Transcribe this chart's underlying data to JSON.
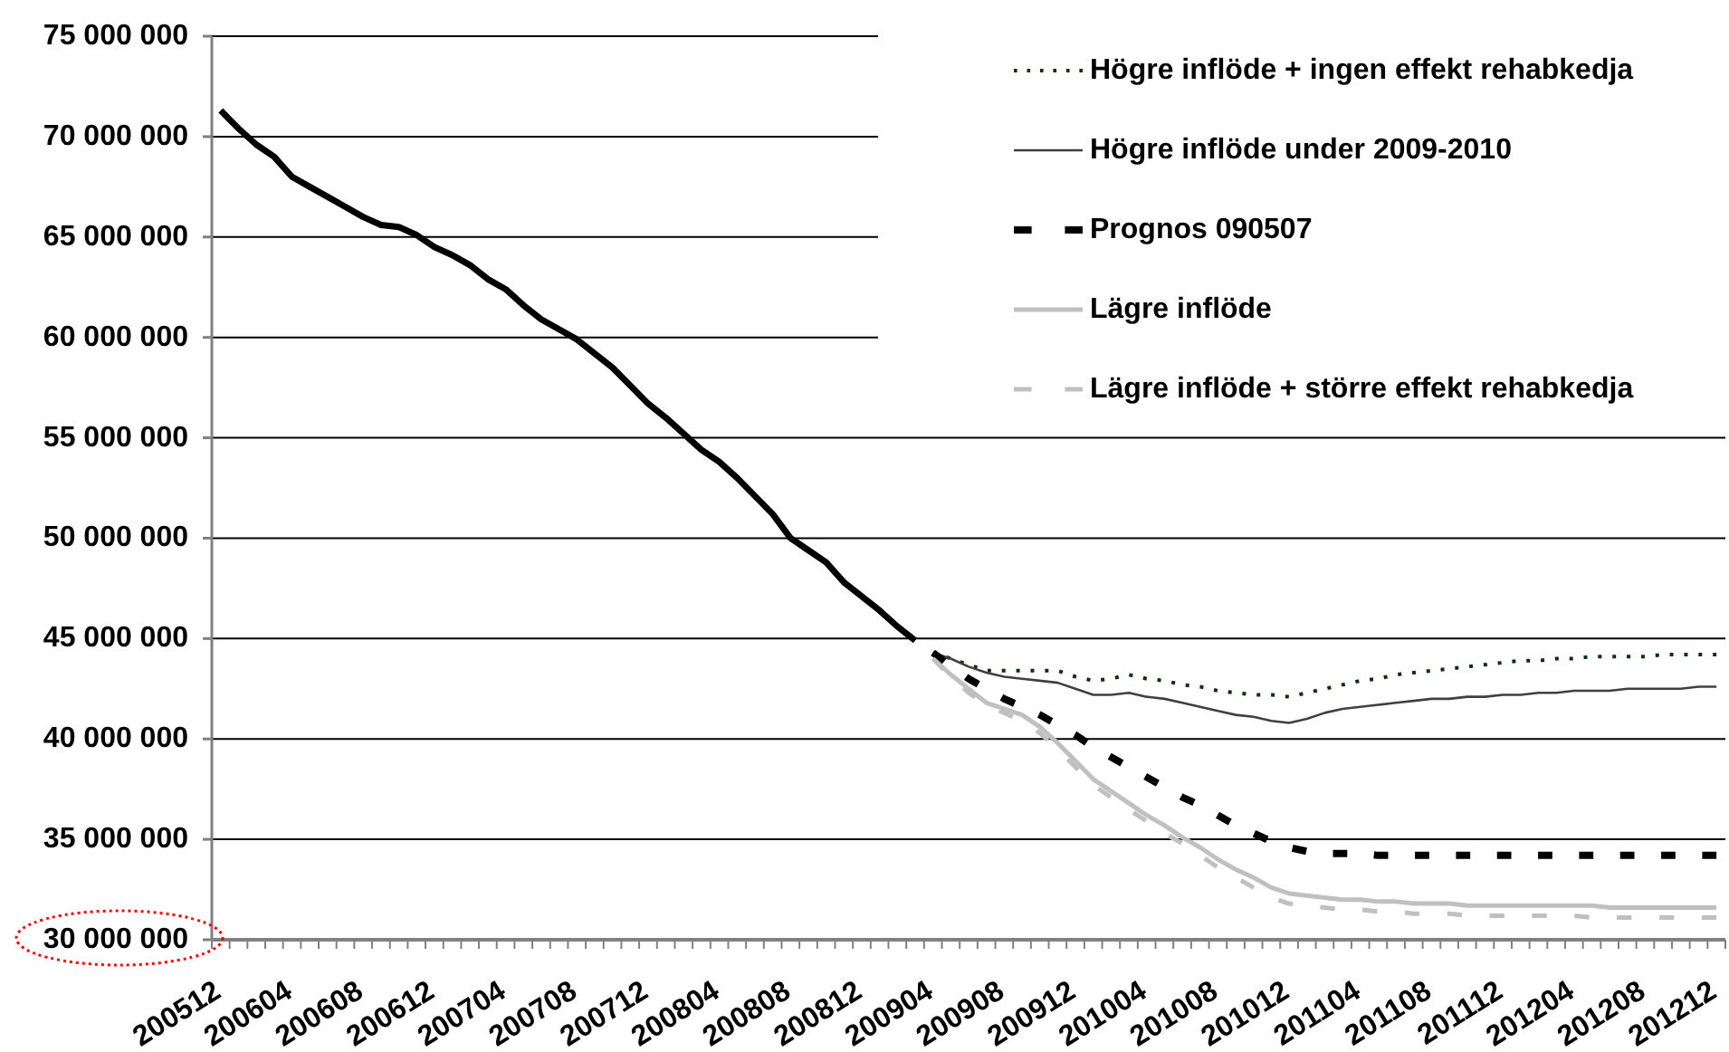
{
  "chart_data": {
    "type": "line",
    "categories": [
      "200512",
      null,
      null,
      null,
      "200604",
      null,
      null,
      null,
      "200608",
      null,
      null,
      null,
      "200612",
      null,
      null,
      null,
      "200704",
      null,
      null,
      null,
      "200708",
      null,
      null,
      null,
      "200712",
      null,
      null,
      null,
      "200804",
      null,
      null,
      null,
      "200808",
      null,
      null,
      null,
      "200812",
      null,
      null,
      null,
      "200904",
      null,
      null,
      null,
      "200908",
      null,
      null,
      null,
      "200912",
      null,
      null,
      null,
      "201004",
      null,
      null,
      null,
      "201008",
      null,
      null,
      null,
      "201012",
      null,
      null,
      null,
      "201104",
      null,
      null,
      null,
      "201108",
      null,
      null,
      null,
      "201112",
      null,
      null,
      null,
      "201204",
      null,
      null,
      null,
      "201208",
      null,
      null,
      null,
      "201212"
    ],
    "series": [
      {
        "color": "#000000",
        "line_style": "solid",
        "values": [
          71300000,
          70400000,
          69600000,
          69000000,
          68000000,
          67500000,
          67000000,
          66500000,
          66000000,
          65600000,
          65500000,
          65100000,
          64500000,
          64100000,
          63600000,
          62900000,
          62400000,
          61600000,
          60900000,
          60400000,
          59900000,
          59200000,
          58500000,
          57600000,
          56700000,
          56000000,
          55200000,
          54400000,
          53800000,
          53000000,
          52100000,
          51200000,
          50000000,
          49400000,
          48800000,
          47800000,
          47100000,
          46400000,
          45600000,
          44900000,
          null,
          null,
          null,
          null,
          null,
          null,
          null,
          null,
          null,
          null,
          null,
          null,
          null,
          null,
          null,
          null,
          null,
          null,
          null,
          null,
          null,
          null,
          null,
          null,
          null,
          null,
          null,
          null,
          null,
          null,
          null,
          null,
          null,
          null,
          null,
          null,
          null,
          null,
          null,
          null,
          null,
          null,
          null,
          null,
          null
        ]
      },
      {
        "name": "Högre inflöde + ingen effekt rehabkedja",
        "color": "#003300",
        "line_style": "dotted",
        "values": [
          null,
          null,
          null,
          null,
          null,
          null,
          null,
          null,
          null,
          null,
          null,
          null,
          null,
          null,
          null,
          null,
          null,
          null,
          null,
          null,
          null,
          null,
          null,
          null,
          null,
          null,
          null,
          null,
          null,
          null,
          null,
          null,
          null,
          null,
          null,
          null,
          null,
          null,
          null,
          null,
          44300000,
          44000000,
          43700000,
          43400000,
          43400000,
          43400000,
          43400000,
          43400000,
          43100000,
          42900000,
          43000000,
          43200000,
          43000000,
          42900000,
          42700000,
          42600000,
          42400000,
          42300000,
          42200000,
          42200000,
          42100000,
          42300000,
          42500000,
          42700000,
          42900000,
          43000000,
          43200000,
          43300000,
          43400000,
          43500000,
          43600000,
          43700000,
          43800000,
          43900000,
          43900000,
          44000000,
          44000000,
          44100000,
          44100000,
          44100000,
          44100000,
          44200000,
          44200000,
          44200000,
          44200000
        ]
      },
      {
        "name": "Högre inflöde under 2009-2010",
        "color": "#404040",
        "line_style": "solid",
        "values": [
          null,
          null,
          null,
          null,
          null,
          null,
          null,
          null,
          null,
          null,
          null,
          null,
          null,
          null,
          null,
          null,
          null,
          null,
          null,
          null,
          null,
          null,
          null,
          null,
          null,
          null,
          null,
          null,
          null,
          null,
          null,
          null,
          null,
          null,
          null,
          null,
          null,
          null,
          null,
          null,
          44300000,
          44000000,
          43600000,
          43300000,
          43100000,
          43000000,
          42900000,
          42800000,
          42500000,
          42200000,
          42200000,
          42300000,
          42100000,
          42000000,
          41800000,
          41600000,
          41400000,
          41200000,
          41100000,
          40900000,
          40800000,
          41000000,
          41300000,
          41500000,
          41600000,
          41700000,
          41800000,
          41900000,
          42000000,
          42000000,
          42100000,
          42100000,
          42200000,
          42200000,
          42300000,
          42300000,
          42400000,
          42400000,
          42400000,
          42500000,
          42500000,
          42500000,
          42500000,
          42600000,
          42600000
        ]
      },
      {
        "name": "Prognos 090507",
        "color": "#000000",
        "line_style": "dashed",
        "values": [
          null,
          null,
          null,
          null,
          null,
          null,
          null,
          null,
          null,
          null,
          null,
          null,
          null,
          null,
          null,
          null,
          null,
          null,
          null,
          null,
          null,
          null,
          null,
          null,
          null,
          null,
          null,
          null,
          null,
          null,
          null,
          null,
          null,
          null,
          null,
          null,
          null,
          null,
          null,
          null,
          44300000,
          43600000,
          43000000,
          42500000,
          42000000,
          41600000,
          41200000,
          40700000,
          40200000,
          39600000,
          39100000,
          38600000,
          38100000,
          37600000,
          37100000,
          36700000,
          36200000,
          35700000,
          35300000,
          34900000,
          34600000,
          34400000,
          34300000,
          34300000,
          34300000,
          34200000,
          34200000,
          34200000,
          34200000,
          34200000,
          34200000,
          34200000,
          34200000,
          34200000,
          34200000,
          34200000,
          34200000,
          34200000,
          34200000,
          34200000,
          34200000,
          34200000,
          34200000,
          34200000,
          34200000
        ]
      },
      {
        "name": "Lägre inflöde",
        "color": "#c0c0c0",
        "line_style": "solid",
        "values": [
          null,
          null,
          null,
          null,
          null,
          null,
          null,
          null,
          null,
          null,
          null,
          null,
          null,
          null,
          null,
          null,
          null,
          null,
          null,
          null,
          null,
          null,
          null,
          null,
          null,
          null,
          null,
          null,
          null,
          null,
          null,
          null,
          null,
          null,
          null,
          null,
          null,
          null,
          null,
          null,
          44000000,
          43200000,
          42500000,
          41800000,
          41500000,
          41200000,
          40600000,
          39800000,
          38900000,
          38000000,
          37400000,
          36800000,
          36200000,
          35700000,
          35100000,
          34600000,
          34000000,
          33500000,
          33100000,
          32600000,
          32300000,
          32200000,
          32100000,
          32000000,
          32000000,
          31900000,
          31900000,
          31800000,
          31800000,
          31800000,
          31700000,
          31700000,
          31700000,
          31700000,
          31700000,
          31700000,
          31700000,
          31700000,
          31600000,
          31600000,
          31600000,
          31600000,
          31600000,
          31600000,
          31600000
        ]
      },
      {
        "name": "Lägre inflöde + större effekt rehabkedja",
        "color": "#c0c0c0",
        "line_style": "dashed",
        "values": [
          null,
          null,
          null,
          null,
          null,
          null,
          null,
          null,
          null,
          null,
          null,
          null,
          null,
          null,
          null,
          null,
          null,
          null,
          null,
          null,
          null,
          null,
          null,
          null,
          null,
          null,
          null,
          null,
          null,
          null,
          null,
          null,
          null,
          null,
          null,
          null,
          null,
          null,
          null,
          null,
          44000000,
          43100000,
          42300000,
          41700000,
          41300000,
          40900000,
          40300000,
          39500000,
          38600000,
          37700000,
          37100000,
          36500000,
          35900000,
          35300000,
          34800000,
          34200000,
          33600000,
          33100000,
          32600000,
          32100000,
          31800000,
          31700000,
          31600000,
          31500000,
          31500000,
          31400000,
          31400000,
          31300000,
          31300000,
          31300000,
          31200000,
          31200000,
          31200000,
          31200000,
          31200000,
          31200000,
          31200000,
          31100000,
          31100000,
          31100000,
          31100000,
          31100000,
          31100000,
          31100000,
          31100000
        ]
      }
    ],
    "ylim": [
      30000000,
      75000000
    ],
    "yticks": [
      {
        "value": 30000000,
        "label": "30 000 000"
      },
      {
        "value": 35000000,
        "label": "35 000 000"
      },
      {
        "value": 40000000,
        "label": "40 000 000"
      },
      {
        "value": 45000000,
        "label": "45 000 000"
      },
      {
        "value": 50000000,
        "label": "50 000 000"
      },
      {
        "value": 55000000,
        "label": "55 000 000"
      },
      {
        "value": 60000000,
        "label": "60 000 000"
      },
      {
        "value": 65000000,
        "label": "65 000 000"
      },
      {
        "value": 70000000,
        "label": "70 000 000"
      },
      {
        "value": 75000000,
        "label": "75 000 000"
      }
    ],
    "grid": "y",
    "legend": "top right"
  }
}
